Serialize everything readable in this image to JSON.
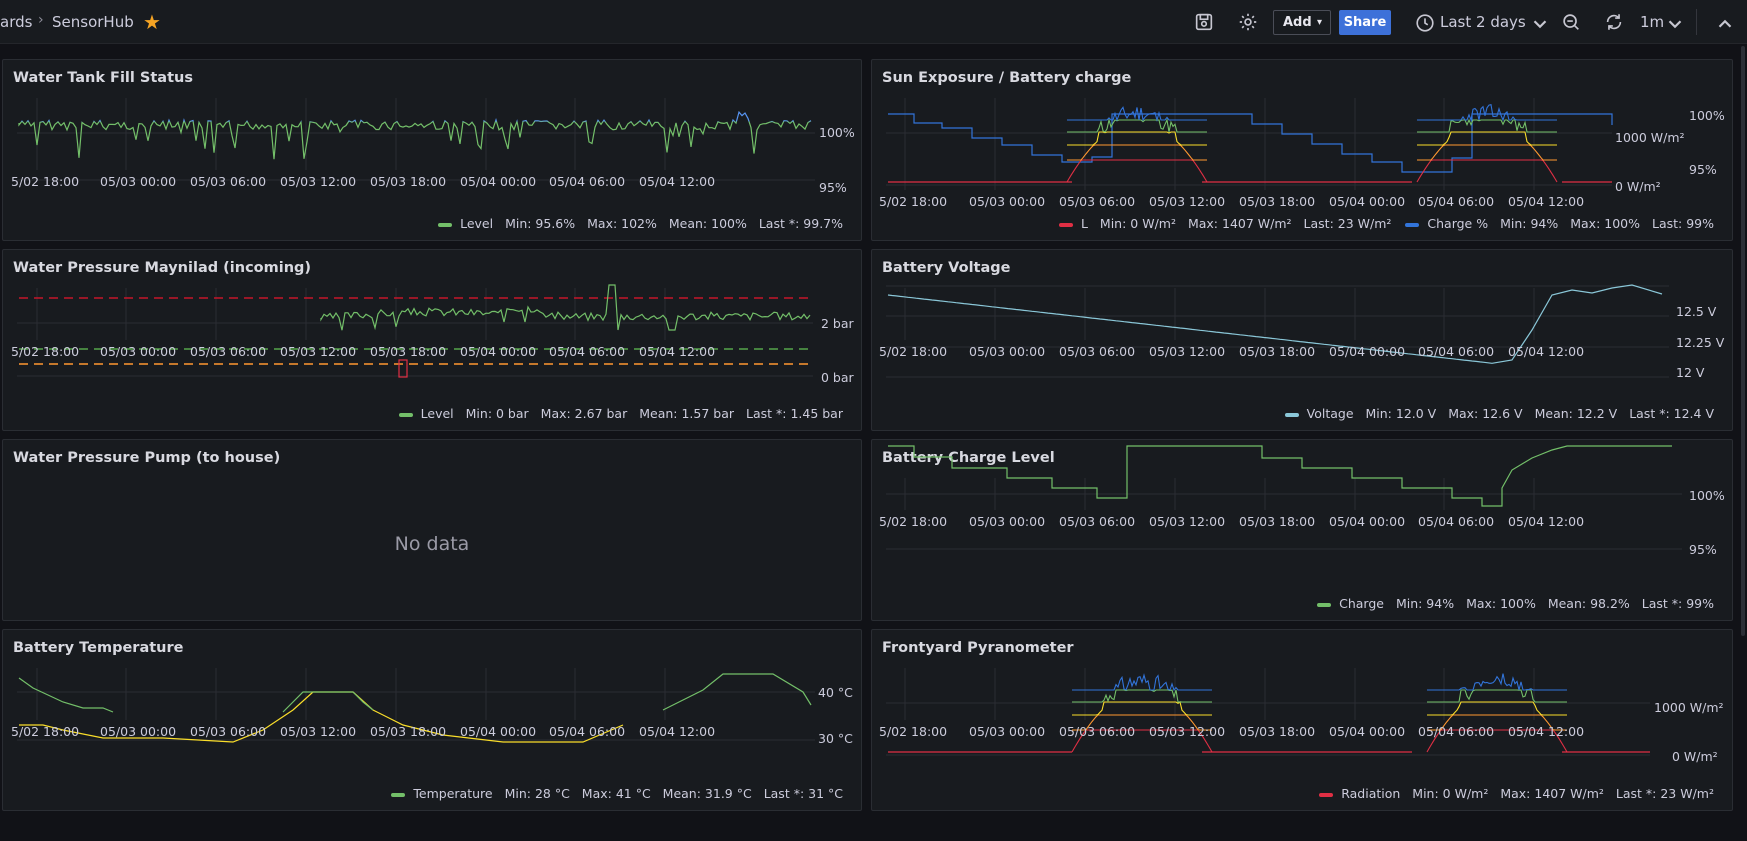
{
  "header": {
    "breadcrumb_prev": "ards",
    "breadcrumb_current": "SensorHub",
    "add_label": "Add",
    "share_label": "Share",
    "time_range": "Last 2 days",
    "refresh_interval": "1m",
    "icons": [
      "star-icon",
      "save-icon",
      "gear-icon",
      "chevron-down-icon",
      "clock-icon",
      "zoom-out-icon",
      "refresh-icon",
      "chevron-up-icon"
    ]
  },
  "colors": {
    "green": "#73bf69",
    "blue": "#5794f2",
    "red": "#f2495c",
    "orange": "#ff9830",
    "yellow": "#fade2a",
    "cyan": "#8ab8ff",
    "teal": "#8ac7d8",
    "dashed_red": "#c4162a",
    "dashed_green": "#56a64b"
  },
  "x_ticks": [
    "5/02 18:00",
    "05/03 00:00",
    "05/03 06:00",
    "05/03 12:00",
    "05/03 18:00",
    "05/04 00:00",
    "05/04 06:00",
    "05/04 12:00"
  ],
  "panels": {
    "tank": {
      "title": "Water Tank Fill Status",
      "y_ticks": [
        "100%",
        "95%"
      ],
      "legend": {
        "name": "Level",
        "min": "Min: 95.6%",
        "max": "Max: 102%",
        "mean": "Mean: 100%",
        "last": "Last *: 99.7%"
      }
    },
    "sun": {
      "title": "Sun Exposure / Battery charge",
      "y_ticks_left": [
        "1000 W/m²",
        "0 W/m²"
      ],
      "y_ticks_right": [
        "100%",
        "95%"
      ],
      "legend": {
        "s1": {
          "name": "L",
          "min": "Min: 0 W/m²",
          "max": "Max: 1407 W/m²",
          "last": "Last: 23 W/m²"
        },
        "s2": {
          "name": "Charge %",
          "min": "Min: 94%",
          "max": "Max: 100%",
          "last": "Last: 99%"
        }
      }
    },
    "pressure": {
      "title": "Water Pressure Maynilad (incoming)",
      "y_ticks": [
        "2 bar",
        "0 bar"
      ],
      "legend": {
        "name": "Level",
        "min": "Min: 0 bar",
        "max": "Max: 2.67 bar",
        "mean": "Mean: 1.57 bar",
        "last": "Last *: 1.45 bar"
      }
    },
    "voltage": {
      "title": "Battery Voltage",
      "y_ticks": [
        "12.5 V",
        "12.25 V",
        "12 V"
      ],
      "legend": {
        "name": "Voltage",
        "min": "Min: 12.0 V",
        "max": "Max: 12.6 V",
        "mean": "Mean: 12.2 V",
        "last": "Last *: 12.4 V"
      }
    },
    "pump": {
      "title": "Water Pressure Pump (to house)",
      "no_data": "No data"
    },
    "charge": {
      "title": "Battery Charge Level",
      "y_ticks": [
        "100%",
        "95%"
      ],
      "legend": {
        "name": "Charge",
        "min": "Min: 94%",
        "max": "Max: 100%",
        "mean": "Mean: 98.2%",
        "last": "Last *: 99%"
      }
    },
    "temp": {
      "title": "Battery Temperature",
      "y_ticks": [
        "40 °C",
        "30 °C"
      ],
      "legend": {
        "name": "Temperature",
        "min": "Min: 28 °C",
        "max": "Max: 41 °C",
        "mean": "Mean: 31.9 °C",
        "last": "Last *: 31 °C"
      }
    },
    "pyra": {
      "title": "Frontyard Pyranometer",
      "y_ticks": [
        "1000 W/m²",
        "0 W/m²"
      ],
      "legend": {
        "name": "Radiation",
        "min": "Min: 0 W/m²",
        "max": "Max: 1407 W/m²",
        "last": "Last *: 23 W/m²"
      }
    }
  },
  "chart_data": [
    {
      "type": "line",
      "panel": "tank",
      "x": [
        "5/02 18:00",
        "05/03 00:00",
        "05/03 06:00",
        "05/03 12:00",
        "05/03 18:00",
        "05/04 00:00",
        "05/04 06:00",
        "05/04 12:00"
      ],
      "series": [
        {
          "name": "Level",
          "values": [
            100,
            100,
            100,
            100,
            100,
            100,
            100,
            100
          ]
        }
      ],
      "ylim": [
        95,
        101
      ]
    },
    {
      "type": "line",
      "panel": "sun",
      "x": [
        "5/02 18:00",
        "05/03 00:00",
        "05/03 06:00",
        "05/03 12:00",
        "05/03 18:00",
        "05/04 00:00",
        "05/04 06:00",
        "05/04 12:00"
      ],
      "series": [
        {
          "name": "L",
          "values": [
            0,
            0,
            0,
            1000,
            0,
            0,
            0,
            1000
          ]
        },
        {
          "name": "Charge %",
          "values": [
            100,
            98,
            96,
            100,
            99,
            97,
            95,
            100
          ]
        }
      ]
    },
    {
      "type": "line",
      "panel": "pressure",
      "x": [
        "5/02 18:00",
        "05/03 00:00",
        "05/03 06:00",
        "05/03 12:00",
        "05/03 18:00",
        "05/04 00:00",
        "05/04 06:00",
        "05/04 12:00"
      ],
      "series": [
        {
          "name": "Level",
          "values": [
            0,
            0,
            0,
            1.2,
            1.6,
            2.0,
            1.5,
            1.45
          ]
        }
      ],
      "ylim": [
        0,
        2.67
      ]
    },
    {
      "type": "line",
      "panel": "voltage",
      "x": [
        "5/02 18:00",
        "05/03 00:00",
        "05/03 06:00",
        "05/03 12:00",
        "05/03 18:00",
        "05/04 00:00",
        "05/04 06:00",
        "05/04 12:00"
      ],
      "series": [
        {
          "name": "Voltage",
          "values": [
            12.4,
            12.35,
            12.3,
            12.25,
            12.2,
            12.15,
            12.05,
            12.45
          ]
        }
      ],
      "ylim": [
        12,
        12.6
      ]
    },
    {
      "type": "line",
      "panel": "charge",
      "x": [
        "5/02 18:00",
        "05/03 00:00",
        "05/03 06:00",
        "05/03 12:00",
        "05/03 18:00",
        "05/04 00:00",
        "05/04 06:00",
        "05/04 12:00"
      ],
      "series": [
        {
          "name": "Charge",
          "values": [
            99.5,
            98.5,
            96.5,
            100,
            99,
            98,
            95,
            100
          ]
        }
      ],
      "ylim": [
        94,
        100
      ]
    },
    {
      "type": "line",
      "panel": "temp",
      "x": [
        "5/02 18:00",
        "05/03 00:00",
        "05/03 06:00",
        "05/03 12:00",
        "05/03 18:00",
        "05/04 00:00",
        "05/04 06:00",
        "05/04 12:00"
      ],
      "series": [
        {
          "name": "Temperature",
          "values": [
            30,
            28.5,
            28,
            41,
            33,
            28,
            30,
            40
          ]
        }
      ],
      "ylim": [
        28,
        41
      ]
    },
    {
      "type": "line",
      "panel": "pyra",
      "x": [
        "5/02 18:00",
        "05/03 00:00",
        "05/03 06:00",
        "05/03 12:00",
        "05/03 18:00",
        "05/04 00:00",
        "05/04 06:00",
        "05/04 12:00"
      ],
      "series": [
        {
          "name": "Radiation",
          "values": [
            0,
            0,
            0,
            1000,
            0,
            0,
            0,
            1000
          ]
        }
      ],
      "ylim": [
        0,
        1407
      ]
    }
  ]
}
